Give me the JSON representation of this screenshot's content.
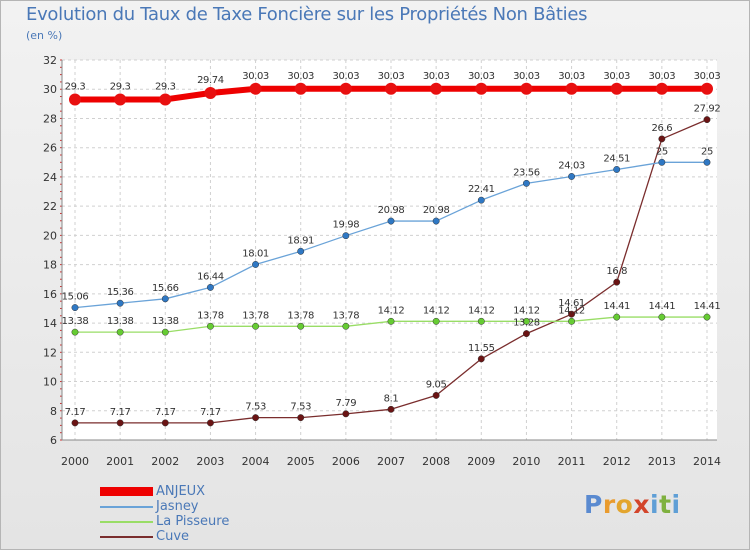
{
  "header": {
    "title": "Evolution du Taux de Taxe Foncière sur les Propriétés Non Bâties",
    "unit_note": "(en %)"
  },
  "logo": {
    "text": "Proxiti",
    "letters": [
      "P",
      "r",
      "o",
      "x",
      "i",
      "t",
      "i"
    ],
    "colors": [
      "#5a8ad0",
      "#e99b2e",
      "#e3a52e",
      "#d3452b",
      "#5f9fd6",
      "#7fb13f",
      "#5f9fd6"
    ]
  },
  "legend": [
    {
      "label": "ANJEUX",
      "color": "#ee0000"
    },
    {
      "label": "Jasney",
      "color": "#6aa3d8"
    },
    {
      "label": "La Pisseure",
      "color": "#99dd66"
    },
    {
      "label": "Cuve",
      "color": "#7a2d2d"
    }
  ],
  "chart_data": {
    "type": "line",
    "title": "Evolution du Taux de Taxe Foncière sur les Propriétés Non Bâties",
    "ylabel": "(en %)",
    "xlabel": "",
    "ylim": [
      6,
      32
    ],
    "yticks": [
      6,
      8,
      10,
      12,
      14,
      16,
      18,
      20,
      22,
      24,
      26,
      28,
      30,
      32
    ],
    "grid": true,
    "legend_position": "bottom-left",
    "x": [
      "2000",
      "2001",
      "2002",
      "2003",
      "2004",
      "2005",
      "2006",
      "2007",
      "2008",
      "2009",
      "2010",
      "2011",
      "2012",
      "2013",
      "2014"
    ],
    "series": [
      {
        "name": "ANJEUX",
        "color": "#ee0000",
        "marker": "#e81010",
        "width": 6,
        "values": [
          29.3,
          29.3,
          29.3,
          29.74,
          30.03,
          30.03,
          30.03,
          30.03,
          30.03,
          30.03,
          30.03,
          30.03,
          30.03,
          30.03,
          30.03
        ],
        "labels": [
          "29.3",
          "29.3",
          "29.3",
          "29.74",
          "30.03",
          "30.03",
          "30.03",
          "30.03",
          "30.03",
          "30.03",
          "30.03",
          "30.03",
          "30.03",
          "30.03",
          "30.03"
        ]
      },
      {
        "name": "Jasney",
        "color": "#6aa3d8",
        "marker": "#2f78c4",
        "width": 1.3,
        "values": [
          15.06,
          15.36,
          15.66,
          16.44,
          18.01,
          18.91,
          19.98,
          20.98,
          20.98,
          22.41,
          23.56,
          24.03,
          24.51,
          25,
          25
        ],
        "labels": [
          "15.06",
          "15.36",
          "15.66",
          "16.44",
          "18.01",
          "18.91",
          "19.98",
          "20.98",
          "20.98",
          "22.41",
          "23.56",
          "24.03",
          "24.51",
          "25",
          "25"
        ]
      },
      {
        "name": "La Pisseure",
        "color": "#99dd66",
        "marker": "#66cc33",
        "width": 1.3,
        "values": [
          13.38,
          13.38,
          13.38,
          13.78,
          13.78,
          13.78,
          13.78,
          14.12,
          14.12,
          14.12,
          14.12,
          14.12,
          14.41,
          14.41,
          14.41
        ],
        "labels": [
          "13.38",
          "13.38",
          "13.38",
          "13.78",
          "13.78",
          "13.78",
          "13.78",
          "14.12",
          "14.12",
          "14.12",
          "14.12",
          "14.12",
          "14.41",
          "14.41",
          "14.41"
        ]
      },
      {
        "name": "Cuve",
        "color": "#7a2d2d",
        "marker": "#6b1414",
        "width": 1.3,
        "values": [
          7.17,
          7.17,
          7.17,
          7.17,
          7.53,
          7.53,
          7.79,
          8.1,
          9.05,
          11.55,
          13.28,
          14.61,
          16.8,
          26.6,
          27.92
        ],
        "labels": [
          "7.17",
          "7.17",
          "7.17",
          "7.17",
          "7.53",
          "7.53",
          "7.79",
          "8.1",
          "9.05",
          "11.55",
          "13.28",
          "14.61",
          "16.8",
          "26.6",
          "27.92"
        ]
      }
    ]
  }
}
